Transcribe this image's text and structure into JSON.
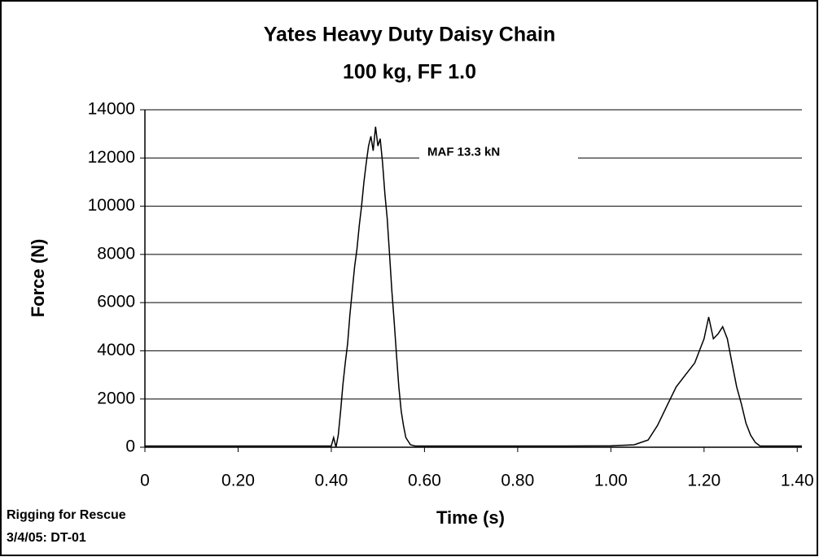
{
  "chart_data": {
    "type": "line",
    "title": "Yates Heavy Duty Daisy Chain",
    "subtitle": "100 kg, FF 1.0",
    "x_label": "Time (s)",
    "y_label": "Force (N)",
    "footnotes": [
      "Rigging for Rescue",
      "3/4/05: DT-01"
    ],
    "annotation": {
      "text": "MAF 13.3 kN",
      "y": 12000
    },
    "xlim": [
      0,
      1.41
    ],
    "ylim": [
      0,
      14000
    ],
    "xticks": [
      0,
      {
        "value": 0.2,
        "label": "0.20"
      },
      {
        "value": 0.4,
        "label": "0.40"
      },
      {
        "value": 0.6,
        "label": "0.60"
      },
      {
        "value": 0.8,
        "label": "0.80"
      },
      {
        "value": 1.0,
        "label": "1.00"
      },
      {
        "value": 1.2,
        "label": "1.20"
      },
      {
        "value": 1.4,
        "label": "1.40"
      }
    ],
    "yticks": [
      0,
      2000,
      4000,
      6000,
      8000,
      10000,
      12000,
      14000
    ],
    "grid": true,
    "series": [
      {
        "color": "#000000",
        "x": [
          0,
          0.1,
          0.2,
          0.3,
          0.4,
          0.405,
          0.41,
          0.415,
          0.42,
          0.425,
          0.43,
          0.435,
          0.44,
          0.445,
          0.45,
          0.455,
          0.46,
          0.465,
          0.47,
          0.475,
          0.48,
          0.485,
          0.49,
          0.495,
          0.5,
          0.505,
          0.51,
          0.515,
          0.52,
          0.525,
          0.53,
          0.535,
          0.54,
          0.545,
          0.55,
          0.555,
          0.56,
          0.57,
          0.58,
          0.7,
          0.9,
          1.0,
          1.05,
          1.08,
          1.1,
          1.12,
          1.14,
          1.16,
          1.18,
          1.19,
          1.2,
          1.21,
          1.22,
          1.23,
          1.24,
          1.25,
          1.26,
          1.27,
          1.28,
          1.29,
          1.3,
          1.31,
          1.32,
          1.41
        ],
        "values": [
          50,
          50,
          50,
          50,
          50,
          400,
          0,
          500,
          1500,
          2600,
          3500,
          4300,
          5500,
          6500,
          7500,
          8200,
          9200,
          10000,
          11000,
          11800,
          12500,
          12900,
          12300,
          13300,
          12500,
          12800,
          11800,
          10500,
          9500,
          8000,
          6500,
          5200,
          3800,
          2500,
          1500,
          900,
          400,
          100,
          50,
          50,
          50,
          60,
          100,
          300,
          900,
          1700,
          2500,
          3000,
          3500,
          4000,
          4500,
          5400,
          4500,
          4700,
          5000,
          4500,
          3500,
          2500,
          1800,
          1000,
          500,
          200,
          50,
          50
        ]
      }
    ]
  }
}
